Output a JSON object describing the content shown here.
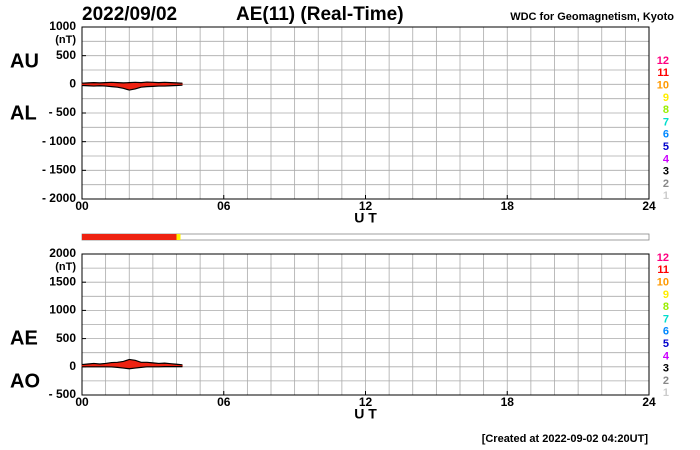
{
  "header": {
    "date": "2022/09/02",
    "title": "AE(11) (Real-Time)",
    "source": "WDC for Geomagnetism, Kyoto"
  },
  "footer": "[Created at 2022-09-02 04:20UT]",
  "month_legend": [
    {
      "label": "12",
      "color": "#ff0080"
    },
    {
      "label": "11",
      "color": "#ff0000"
    },
    {
      "label": "10",
      "color": "#ff9900"
    },
    {
      "label": "9",
      "color": "#ffee00"
    },
    {
      "label": "8",
      "color": "#99ee00"
    },
    {
      "label": "7",
      "color": "#00ddcc"
    },
    {
      "label": "6",
      "color": "#0088ff"
    },
    {
      "label": "5",
      "color": "#0000cc"
    },
    {
      "label": "4",
      "color": "#cc00ff"
    },
    {
      "label": "3",
      "color": "#000000"
    },
    {
      "label": "2",
      "color": "#888888"
    },
    {
      "label": "1",
      "color": "#cccccc"
    }
  ],
  "status_bar": [
    {
      "start": 0,
      "end": 4.0,
      "color": "#ee2211"
    },
    {
      "start": 4.0,
      "end": 4.17,
      "color": "#ffee00"
    }
  ],
  "chart_data": [
    {
      "type": "band",
      "y_unit": "(nT)",
      "x_label": "U T",
      "fill": "#ee2211",
      "line_color": "#000000",
      "x": [
        0,
        0.25,
        0.5,
        0.75,
        1,
        1.25,
        1.5,
        1.75,
        2,
        2.25,
        2.5,
        2.75,
        3,
        3.25,
        3.5,
        3.75,
        4,
        4.25
      ],
      "series": [
        {
          "name": "AU",
          "values": [
            20,
            25,
            30,
            25,
            30,
            35,
            30,
            25,
            30,
            35,
            30,
            40,
            35,
            30,
            35,
            30,
            25,
            20
          ]
        },
        {
          "name": "AL",
          "values": [
            -20,
            -25,
            -30,
            -25,
            -30,
            -40,
            -50,
            -70,
            -100,
            -80,
            -50,
            -40,
            -35,
            -30,
            -30,
            -25,
            -20,
            -15
          ]
        }
      ],
      "xlim": [
        0,
        24
      ],
      "xticks": [
        {
          "value": 0,
          "label": "00"
        },
        {
          "value": 6,
          "label": "06"
        },
        12,
        18,
        24
      ],
      "ylim": [
        -2000,
        1000
      ],
      "yticks": [
        1000,
        {
          "value": 500,
          "label": "500"
        },
        0,
        {
          "value": -500,
          "label": "- 500"
        },
        {
          "value": -1000,
          "label": "- 1000"
        },
        {
          "value": -1500,
          "label": "- 1500"
        },
        {
          "value": -2000,
          "label": "- 2000"
        }
      ],
      "xgrid": [
        0,
        1,
        2,
        3,
        4,
        5,
        6,
        7,
        8,
        9,
        10,
        11,
        12,
        13,
        14,
        15,
        16,
        17,
        18,
        19,
        20,
        21,
        22,
        23,
        24
      ],
      "ygrid": [
        -2000,
        -1750,
        -1500,
        -1250,
        -1000,
        -750,
        -500,
        -250,
        0,
        250,
        500,
        750,
        1000
      ]
    },
    {
      "type": "band",
      "y_unit": "(nT)",
      "x_label": "U T",
      "fill": "#ee2211",
      "line_color": "#000000",
      "x": [
        0,
        0.25,
        0.5,
        0.75,
        1,
        1.25,
        1.5,
        1.75,
        2,
        2.25,
        2.5,
        2.75,
        3,
        3.25,
        3.5,
        3.75,
        4,
        4.25
      ],
      "series": [
        {
          "name": "AE",
          "values": [
            40,
            50,
            60,
            50,
            60,
            75,
            80,
            95,
            130,
            115,
            80,
            80,
            70,
            60,
            65,
            55,
            45,
            35
          ]
        },
        {
          "name": "AO",
          "values": [
            0,
            0,
            0,
            0,
            0,
            -2.5,
            -10,
            -22.5,
            -35,
            -22.5,
            -10,
            0,
            0,
            0,
            2.5,
            2.5,
            2.5,
            2.5
          ]
        }
      ],
      "xlim": [
        0,
        24
      ],
      "xticks": [
        {
          "value": 0,
          "label": "00"
        },
        {
          "value": 6,
          "label": "06"
        },
        12,
        18,
        24
      ],
      "ylim": [
        -500,
        2000
      ],
      "yticks": [
        2000,
        1500,
        1000,
        500,
        0,
        {
          "value": -500,
          "label": "- 500"
        }
      ],
      "xgrid": [
        0,
        1,
        2,
        3,
        4,
        5,
        6,
        7,
        8,
        9,
        10,
        11,
        12,
        13,
        14,
        15,
        16,
        17,
        18,
        19,
        20,
        21,
        22,
        23,
        24
      ],
      "ygrid": [
        -500,
        -250,
        0,
        250,
        500,
        750,
        1000,
        1250,
        1500,
        1750,
        2000
      ]
    }
  ]
}
